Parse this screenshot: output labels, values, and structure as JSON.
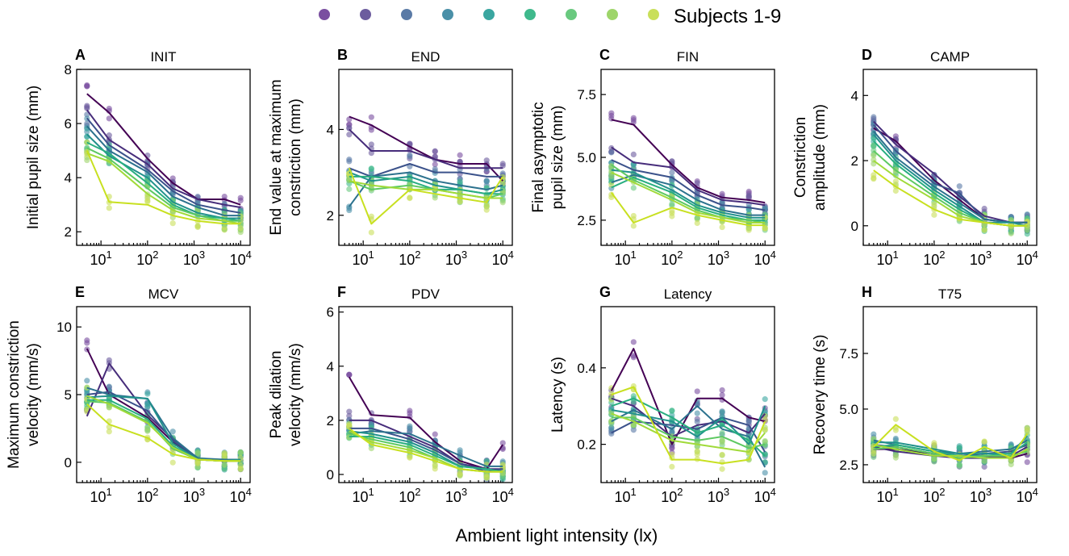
{
  "legend": {
    "label": "Subjects 1-9",
    "colors": [
      "#7a4fa0",
      "#6c5c9e",
      "#5a7aa6",
      "#4a90a8",
      "#3aa6a0",
      "#3fb98c",
      "#69c97f",
      "#9ed56a",
      "#c9df5a"
    ]
  },
  "x_label": "Ambient light intensity (lx)",
  "x_ticks": [
    {
      "value": 10,
      "base": "10",
      "exp": "1"
    },
    {
      "value": 100,
      "base": "10",
      "exp": "2"
    },
    {
      "value": 1000,
      "base": "10",
      "exp": "3"
    },
    {
      "value": 10000,
      "base": "10",
      "exp": "4"
    }
  ],
  "line_colors": [
    "#440154",
    "#472d7b",
    "#3b528b",
    "#2c728e",
    "#21918c",
    "#28ae80",
    "#5ec962",
    "#a0da39",
    "#c8e020"
  ],
  "chart_data": [
    {
      "type": "scatter+line",
      "letter": "A",
      "title": "INIT",
      "ylabel": [
        "Initial pupil size (mm)"
      ],
      "x": [
        5,
        15,
        100,
        350,
        1200,
        4500,
        10000
      ],
      "ylim": [
        1.5,
        8
      ],
      "yticks": [
        {
          "v": 2,
          "t": "2"
        },
        {
          "v": 4,
          "t": "4"
        },
        {
          "v": 6,
          "t": "6"
        },
        {
          "v": 8,
          "t": "8"
        }
      ],
      "series": [
        {
          "name": "Subject 1",
          "values": [
            7.1,
            6.4,
            4.7,
            3.8,
            3.2,
            3.2,
            3.0
          ]
        },
        {
          "name": "Subject 2",
          "values": [
            6.5,
            5.4,
            4.5,
            3.6,
            3.2,
            3.0,
            2.9
          ]
        },
        {
          "name": "Subject 3",
          "values": [
            6.2,
            5.2,
            4.3,
            3.5,
            3.0,
            2.8,
            2.7
          ]
        },
        {
          "name": "Subject 4",
          "values": [
            5.9,
            5.0,
            4.2,
            3.3,
            2.9,
            2.6,
            2.6
          ]
        },
        {
          "name": "Subject 5",
          "values": [
            5.6,
            4.8,
            4.0,
            3.1,
            2.7,
            2.5,
            2.5
          ]
        },
        {
          "name": "Subject 6",
          "values": [
            5.3,
            4.9,
            3.8,
            3.0,
            2.6,
            2.5,
            2.4
          ]
        },
        {
          "name": "Subject 7",
          "values": [
            5.1,
            4.7,
            3.6,
            2.9,
            2.6,
            2.4,
            2.4
          ]
        },
        {
          "name": "Subject 8",
          "values": [
            4.9,
            4.6,
            3.4,
            2.8,
            2.5,
            2.4,
            2.3
          ]
        },
        {
          "name": "Subject 9",
          "values": [
            5.0,
            3.1,
            3.0,
            2.6,
            2.4,
            2.3,
            2.3
          ]
        }
      ]
    },
    {
      "type": "scatter+line",
      "letter": "B",
      "title": "END",
      "ylabel": [
        "End value at maximum",
        "constriction (mm)"
      ],
      "x": [
        5,
        15,
        100,
        350,
        1200,
        4500,
        10000
      ],
      "ylim": [
        1.3,
        5.4
      ],
      "yticks": [
        {
          "v": 2,
          "t": "2"
        },
        {
          "v": 4,
          "t": "4"
        }
      ],
      "series": [
        {
          "name": "Subject 1",
          "values": [
            4.3,
            4.1,
            3.6,
            3.3,
            3.2,
            3.2,
            2.8
          ]
        },
        {
          "name": "Subject 2",
          "values": [
            4.0,
            3.5,
            3.5,
            3.3,
            3.1,
            3.1,
            3.1
          ]
        },
        {
          "name": "Subject 3",
          "values": [
            3.1,
            2.9,
            3.2,
            3.0,
            3.0,
            2.9,
            2.9
          ]
        },
        {
          "name": "Subject 4",
          "values": [
            2.2,
            2.9,
            3.0,
            2.8,
            2.7,
            2.6,
            2.7
          ]
        },
        {
          "name": "Subject 5",
          "values": [
            3.0,
            2.8,
            2.9,
            2.7,
            2.6,
            2.5,
            2.6
          ]
        },
        {
          "name": "Subject 6",
          "values": [
            2.9,
            2.9,
            2.8,
            2.6,
            2.6,
            2.5,
            2.5
          ]
        },
        {
          "name": "Subject 7",
          "values": [
            2.8,
            2.6,
            2.7,
            2.6,
            2.5,
            2.4,
            2.5
          ]
        },
        {
          "name": "Subject 8",
          "values": [
            2.8,
            2.7,
            2.6,
            2.6,
            2.5,
            2.4,
            2.4
          ]
        },
        {
          "name": "Subject 9",
          "values": [
            3.1,
            1.8,
            2.6,
            2.5,
            2.4,
            2.3,
            2.9
          ]
        }
      ]
    },
    {
      "type": "scatter+line",
      "letter": "C",
      "title": "FIN",
      "ylabel": [
        "Final asymptotic",
        "pupil size (mm)"
      ],
      "x": [
        5,
        15,
        100,
        350,
        1200,
        4500,
        10000
      ],
      "ylim": [
        1.5,
        8.5
      ],
      "yticks": [
        {
          "v": 2.5,
          "t": "2.5"
        },
        {
          "v": 5,
          "t": "5.0"
        },
        {
          "v": 7.5,
          "t": "7.5"
        }
      ],
      "series": [
        {
          "name": "Subject 1",
          "values": [
            6.5,
            6.3,
            4.7,
            3.8,
            3.4,
            3.3,
            3.2
          ]
        },
        {
          "name": "Subject 2",
          "values": [
            5.4,
            4.8,
            4.6,
            3.7,
            3.3,
            3.2,
            3.1
          ]
        },
        {
          "name": "Subject 3",
          "values": [
            4.9,
            4.5,
            4.2,
            3.5,
            3.1,
            3.0,
            2.9
          ]
        },
        {
          "name": "Subject 4",
          "values": [
            4.0,
            4.3,
            3.9,
            3.3,
            2.9,
            2.7,
            2.7
          ]
        },
        {
          "name": "Subject 5",
          "values": [
            4.5,
            4.4,
            3.7,
            3.1,
            2.8,
            2.6,
            2.6
          ]
        },
        {
          "name": "Subject 6",
          "values": [
            3.8,
            4.2,
            3.6,
            3.0,
            2.7,
            2.5,
            2.5
          ]
        },
        {
          "name": "Subject 7",
          "values": [
            4.7,
            4.1,
            3.4,
            2.9,
            2.6,
            2.5,
            2.4
          ]
        },
        {
          "name": "Subject 8",
          "values": [
            4.4,
            4.0,
            3.3,
            2.8,
            2.6,
            2.4,
            2.4
          ]
        },
        {
          "name": "Subject 9",
          "values": [
            3.6,
            2.4,
            3.0,
            2.7,
            2.5,
            2.3,
            2.3
          ]
        }
      ]
    },
    {
      "type": "scatter+line",
      "letter": "D",
      "title": "CAMP",
      "ylabel": [
        "Constriction",
        "amplitude (mm)"
      ],
      "x": [
        5,
        15,
        100,
        350,
        1200,
        4500,
        10000
      ],
      "ylim": [
        -0.6,
        4.8
      ],
      "yticks": [
        {
          "v": 0,
          "t": "0"
        },
        {
          "v": 2,
          "t": "2"
        },
        {
          "v": 4,
          "t": "4"
        }
      ],
      "series": [
        {
          "name": "Subject 1",
          "values": [
            3.0,
            2.6,
            1.4,
            0.8,
            0.2,
            0.1,
            0.1
          ]
        },
        {
          "name": "Subject 2",
          "values": [
            3.2,
            2.5,
            1.6,
            0.9,
            0.3,
            0.1,
            0.1
          ]
        },
        {
          "name": "Subject 3",
          "values": [
            3.1,
            2.3,
            1.3,
            1.0,
            0.2,
            0.1,
            0.1
          ]
        },
        {
          "name": "Subject 4",
          "values": [
            2.9,
            2.1,
            1.2,
            0.7,
            0.2,
            0.1,
            0.1
          ]
        },
        {
          "name": "Subject 5",
          "values": [
            2.8,
            2.0,
            1.1,
            0.6,
            0.1,
            0.1,
            0.0
          ]
        },
        {
          "name": "Subject 6",
          "values": [
            2.6,
            1.9,
            1.0,
            0.5,
            0.1,
            0.0,
            0.0
          ]
        },
        {
          "name": "Subject 7",
          "values": [
            2.3,
            1.7,
            0.9,
            0.4,
            0.1,
            0.0,
            0.0
          ]
        },
        {
          "name": "Subject 8",
          "values": [
            2.0,
            1.5,
            0.8,
            0.3,
            0.1,
            0.0,
            0.0
          ]
        },
        {
          "name": "Subject 9",
          "values": [
            1.7,
            1.2,
            0.5,
            0.2,
            0.1,
            0.0,
            0.0
          ]
        }
      ]
    },
    {
      "type": "scatter+line",
      "letter": "E",
      "title": "MCV",
      "ylabel": [
        "Maximum constriction",
        "velocity (mm/s)"
      ],
      "x": [
        5,
        15,
        100,
        350,
        1200,
        4500,
        10000
      ],
      "ylim": [
        -1.5,
        11.5
      ],
      "yticks": [
        {
          "v": 0,
          "t": "0"
        },
        {
          "v": 5,
          "t": "5"
        },
        {
          "v": 10,
          "t": "10"
        }
      ],
      "series": [
        {
          "name": "Subject 1",
          "values": [
            8.4,
            5.0,
            3.3,
            1.5,
            0.2,
            0.1,
            0.1
          ]
        },
        {
          "name": "Subject 2",
          "values": [
            3.4,
            7.3,
            3.5,
            1.7,
            0.3,
            0.1,
            0.1
          ]
        },
        {
          "name": "Subject 3",
          "values": [
            5.0,
            5.2,
            3.8,
            1.6,
            0.3,
            0.1,
            0.2
          ]
        },
        {
          "name": "Subject 4",
          "values": [
            5.5,
            5.0,
            4.7,
            1.8,
            0.3,
            0.2,
            0.2
          ]
        },
        {
          "name": "Subject 5",
          "values": [
            4.8,
            4.9,
            4.7,
            1.4,
            0.2,
            0.1,
            0.2
          ]
        },
        {
          "name": "Subject 6",
          "values": [
            4.6,
            4.6,
            3.2,
            1.2,
            0.2,
            0.1,
            0.1
          ]
        },
        {
          "name": "Subject 7",
          "values": [
            4.5,
            4.4,
            3.0,
            1.0,
            0.2,
            0.1,
            0.1
          ]
        },
        {
          "name": "Subject 8",
          "values": [
            4.9,
            4.3,
            2.9,
            1.1,
            0.2,
            0.1,
            0.1
          ]
        },
        {
          "name": "Subject 9",
          "values": [
            4.3,
            2.8,
            1.8,
            0.6,
            0.2,
            0.1,
            0.1
          ]
        }
      ]
    },
    {
      "type": "scatter+line",
      "letter": "F",
      "title": "PDV",
      "ylabel": [
        "Peak dilation",
        "velocity (mm/s)"
      ],
      "x": [
        5,
        15,
        100,
        350,
        1200,
        4500,
        10000
      ],
      "ylim": [
        -0.3,
        6.2
      ],
      "yticks": [
        {
          "v": 0,
          "t": "0"
        },
        {
          "v": 2,
          "t": "2"
        },
        {
          "v": 4,
          "t": "4"
        },
        {
          "v": 6,
          "t": "6"
        }
      ],
      "series": [
        {
          "name": "Subject 1",
          "values": [
            3.6,
            2.2,
            2.1,
            1.2,
            0.5,
            0.2,
            1.1
          ]
        },
        {
          "name": "Subject 2",
          "values": [
            2.0,
            2.0,
            1.4,
            1.0,
            0.4,
            0.2,
            0.2
          ]
        },
        {
          "name": "Subject 3",
          "values": [
            1.7,
            1.7,
            1.3,
            0.9,
            0.4,
            0.1,
            0.2
          ]
        },
        {
          "name": "Subject 4",
          "values": [
            1.5,
            1.6,
            1.5,
            1.1,
            0.7,
            0.3,
            0.3
          ]
        },
        {
          "name": "Subject 5",
          "values": [
            1.6,
            1.5,
            1.2,
            0.8,
            0.3,
            0.2,
            0.1
          ]
        },
        {
          "name": "Subject 6",
          "values": [
            1.4,
            1.4,
            1.1,
            0.7,
            0.3,
            0.2,
            0.1
          ]
        },
        {
          "name": "Subject 7",
          "values": [
            1.5,
            1.3,
            1.0,
            0.6,
            0.2,
            0.1,
            0.1
          ]
        },
        {
          "name": "Subject 8",
          "values": [
            1.6,
            1.2,
            0.9,
            0.6,
            0.2,
            0.1,
            0.1
          ]
        },
        {
          "name": "Subject 9",
          "values": [
            1.7,
            1.1,
            0.8,
            0.5,
            0.2,
            0.1,
            0.1
          ]
        }
      ]
    },
    {
      "type": "scatter+line",
      "letter": "G",
      "title": "Latency",
      "ylabel": [
        "Latency (s)"
      ],
      "x": [
        5,
        15,
        100,
        350,
        1200,
        4500,
        10000
      ],
      "ylim": [
        0.1,
        0.56
      ],
      "yticks": [
        {
          "v": 0.2,
          "t": "0.2"
        },
        {
          "v": 0.4,
          "t": "0.4"
        }
      ],
      "series": [
        {
          "name": "Subject 1",
          "values": [
            0.34,
            0.45,
            0.2,
            0.32,
            0.32,
            0.27,
            0.26
          ]
        },
        {
          "name": "Subject 2",
          "values": [
            0.32,
            0.3,
            0.22,
            0.25,
            0.26,
            0.23,
            0.28
          ]
        },
        {
          "name": "Subject 3",
          "values": [
            0.23,
            0.26,
            0.25,
            0.24,
            0.27,
            0.25,
            0.18
          ]
        },
        {
          "name": "Subject 4",
          "values": [
            0.26,
            0.29,
            0.24,
            0.3,
            0.24,
            0.22,
            0.14
          ]
        },
        {
          "name": "Subject 5",
          "values": [
            0.29,
            0.28,
            0.26,
            0.22,
            0.27,
            0.2,
            0.3
          ]
        },
        {
          "name": "Subject 6",
          "values": [
            0.3,
            0.32,
            0.27,
            0.23,
            0.25,
            0.21,
            0.17
          ]
        },
        {
          "name": "Subject 7",
          "values": [
            0.27,
            0.27,
            0.22,
            0.21,
            0.22,
            0.19,
            0.2
          ]
        },
        {
          "name": "Subject 8",
          "values": [
            0.28,
            0.26,
            0.21,
            0.2,
            0.19,
            0.18,
            0.23
          ]
        },
        {
          "name": "Subject 9",
          "values": [
            0.33,
            0.35,
            0.16,
            0.16,
            0.15,
            0.16,
            0.26
          ]
        }
      ]
    },
    {
      "type": "scatter+line",
      "letter": "H",
      "title": "T75",
      "ylabel": [
        "Recovery time (s)"
      ],
      "x": [
        5,
        15,
        100,
        350,
        1200,
        4500,
        10000
      ],
      "ylim": [
        1.7,
        9.6
      ],
      "yticks": [
        {
          "v": 2.5,
          "t": "2.5"
        },
        {
          "v": 5,
          "t": "5.0"
        },
        {
          "v": 7.5,
          "t": "7.5"
        }
      ],
      "series": [
        {
          "name": "Subject 1",
          "values": [
            3.2,
            3.2,
            3.0,
            2.9,
            2.9,
            2.8,
            3.0
          ]
        },
        {
          "name": "Subject 2",
          "values": [
            3.3,
            3.1,
            2.9,
            2.8,
            2.8,
            2.9,
            3.3
          ]
        },
        {
          "name": "Subject 3",
          "values": [
            3.4,
            3.3,
            3.0,
            2.9,
            3.0,
            3.1,
            3.4
          ]
        },
        {
          "name": "Subject 4",
          "values": [
            3.6,
            3.4,
            3.1,
            3.0,
            3.1,
            3.2,
            3.6
          ]
        },
        {
          "name": "Subject 5",
          "values": [
            3.5,
            3.5,
            3.2,
            3.0,
            3.0,
            3.0,
            3.8
          ]
        },
        {
          "name": "Subject 6",
          "values": [
            3.3,
            3.4,
            3.1,
            2.9,
            2.9,
            3.0,
            3.5
          ]
        },
        {
          "name": "Subject 7",
          "values": [
            3.2,
            3.3,
            3.0,
            2.8,
            2.9,
            2.9,
            3.1
          ]
        },
        {
          "name": "Subject 8",
          "values": [
            3.4,
            3.2,
            2.9,
            2.9,
            2.8,
            2.8,
            3.2
          ]
        },
        {
          "name": "Subject 9",
          "values": [
            3.3,
            4.3,
            3.1,
            2.7,
            3.3,
            2.8,
            3.9
          ]
        }
      ]
    }
  ]
}
